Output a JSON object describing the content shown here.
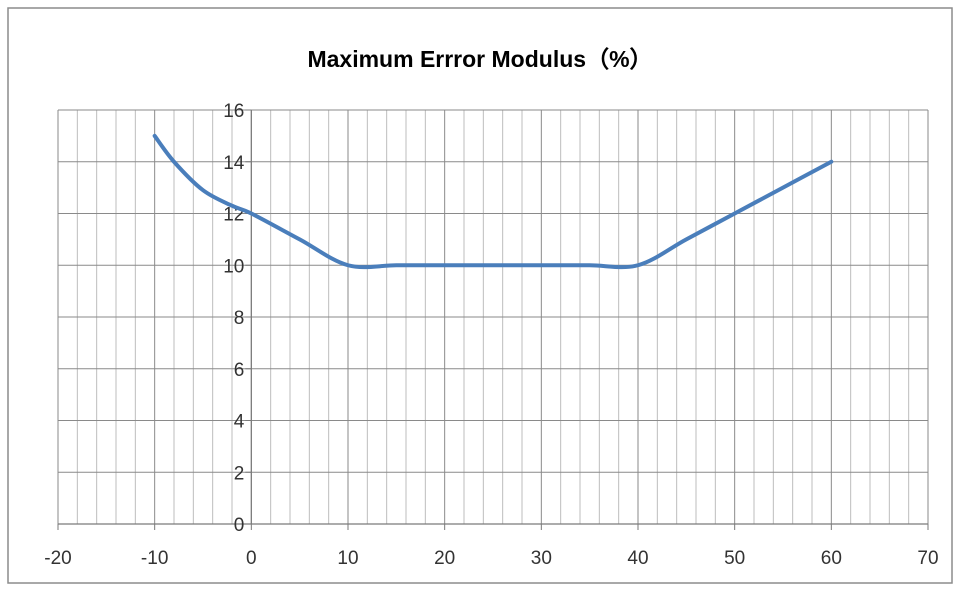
{
  "chart_data": {
    "type": "line",
    "title": "Maximum Errror Modulus（%）",
    "xlabel": "",
    "ylabel": "",
    "xlim": [
      -20,
      70
    ],
    "ylim": [
      0,
      16
    ],
    "x_ticks": [
      -20,
      -10,
      0,
      10,
      20,
      30,
      40,
      50,
      60,
      70
    ],
    "y_ticks": [
      0,
      2,
      4,
      6,
      8,
      10,
      12,
      14,
      16
    ],
    "grid": true,
    "legend": "none",
    "series": [
      {
        "color": "#4a7ebb",
        "points": [
          {
            "x": -10,
            "y": 15
          },
          {
            "x": -8,
            "y": 14
          },
          {
            "x": -5,
            "y": 12.9
          },
          {
            "x": -2,
            "y": 12.3
          },
          {
            "x": 0,
            "y": 12
          },
          {
            "x": 5,
            "y": 11
          },
          {
            "x": 10,
            "y": 10
          },
          {
            "x": 15,
            "y": 10
          },
          {
            "x": 20,
            "y": 10
          },
          {
            "x": 25,
            "y": 10
          },
          {
            "x": 30,
            "y": 10
          },
          {
            "x": 35,
            "y": 10
          },
          {
            "x": 40,
            "y": 10
          },
          {
            "x": 45,
            "y": 11
          },
          {
            "x": 50,
            "y": 12
          },
          {
            "x": 55,
            "y": 13
          },
          {
            "x": 60,
            "y": 14
          }
        ]
      }
    ]
  }
}
